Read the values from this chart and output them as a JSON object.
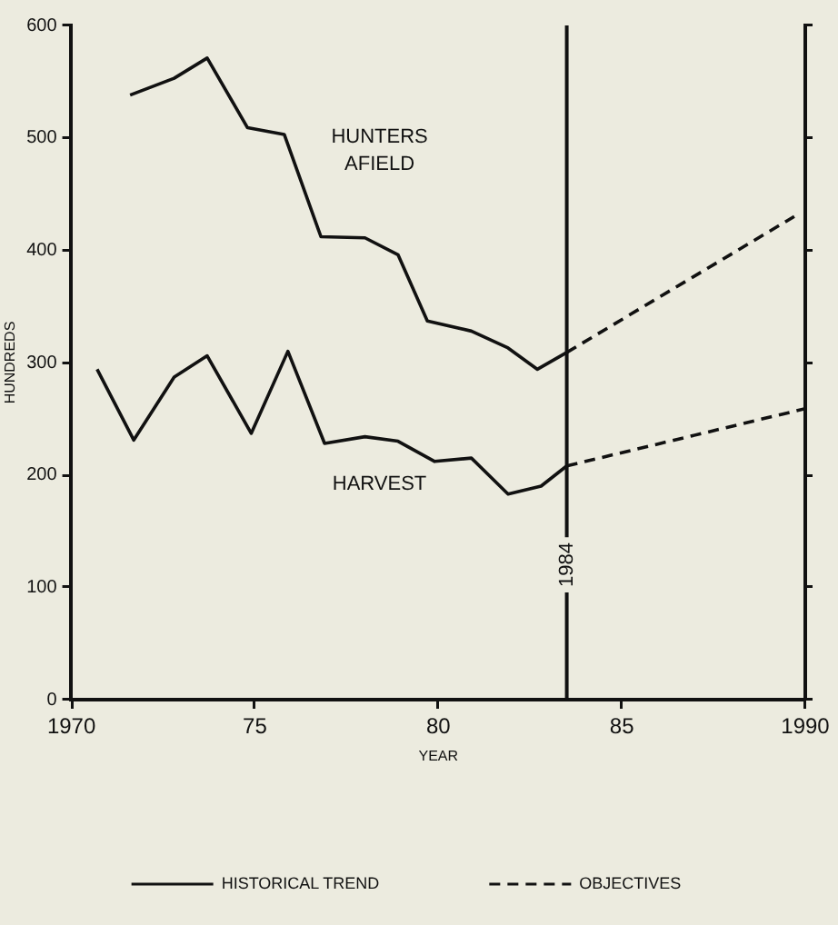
{
  "chart_data": {
    "type": "line",
    "xlabel": "YEAR",
    "ylabel": "HUNDREDS",
    "xlim": [
      1970,
      1990
    ],
    "ylim": [
      0,
      600
    ],
    "xticks": [
      1970,
      {
        "value": 1975,
        "label": "75"
      },
      {
        "value": 1980,
        "label": "80"
      },
      {
        "value": 1985,
        "label": "85"
      },
      1990
    ],
    "yticks": [
      0,
      100,
      200,
      300,
      400,
      500,
      600
    ],
    "grid": false,
    "marker": "none",
    "legend": "bottom",
    "series": [
      {
        "name": "HISTORICAL TREND",
        "color": "#111111",
        "line_style": "solid",
        "x": [
          1971.6,
          1972.8,
          1973.7,
          1974.8,
          1975.8,
          1976.8,
          1978.0,
          1978.9,
          1979.7,
          1980.9,
          1981.9,
          1982.7,
          1983.5
        ],
        "values": [
          538,
          553,
          571,
          509,
          503,
          412,
          411,
          396,
          337,
          328,
          313,
          294,
          309
        ]
      },
      {
        "color": "#111111",
        "line_style": "solid",
        "x": [
          1970.7,
          1971.7,
          1972.8,
          1973.7,
          1974.9,
          1975.9,
          1976.9,
          1978.0,
          1978.9,
          1979.9,
          1980.9,
          1981.9,
          1982.8,
          1983.5
        ],
        "values": [
          294,
          231,
          287,
          306,
          237,
          310,
          228,
          234,
          230,
          212,
          215,
          183,
          190,
          208
        ]
      },
      {
        "name": "OBJECTIVES",
        "color": "#111111",
        "line_style": "dashed",
        "x": [
          1983.5,
          1989.7
        ],
        "values": [
          309,
          430
        ]
      },
      {
        "color": "#111111",
        "line_style": "dashed",
        "x": [
          1983.5,
          1990
        ],
        "values": [
          208,
          259
        ]
      }
    ],
    "ref_lines": [
      {
        "axis": "x",
        "value": 1983.5,
        "label": "1984"
      }
    ],
    "annotations": [
      "HUNTERS AFIELD",
      "HARVEST"
    ]
  }
}
